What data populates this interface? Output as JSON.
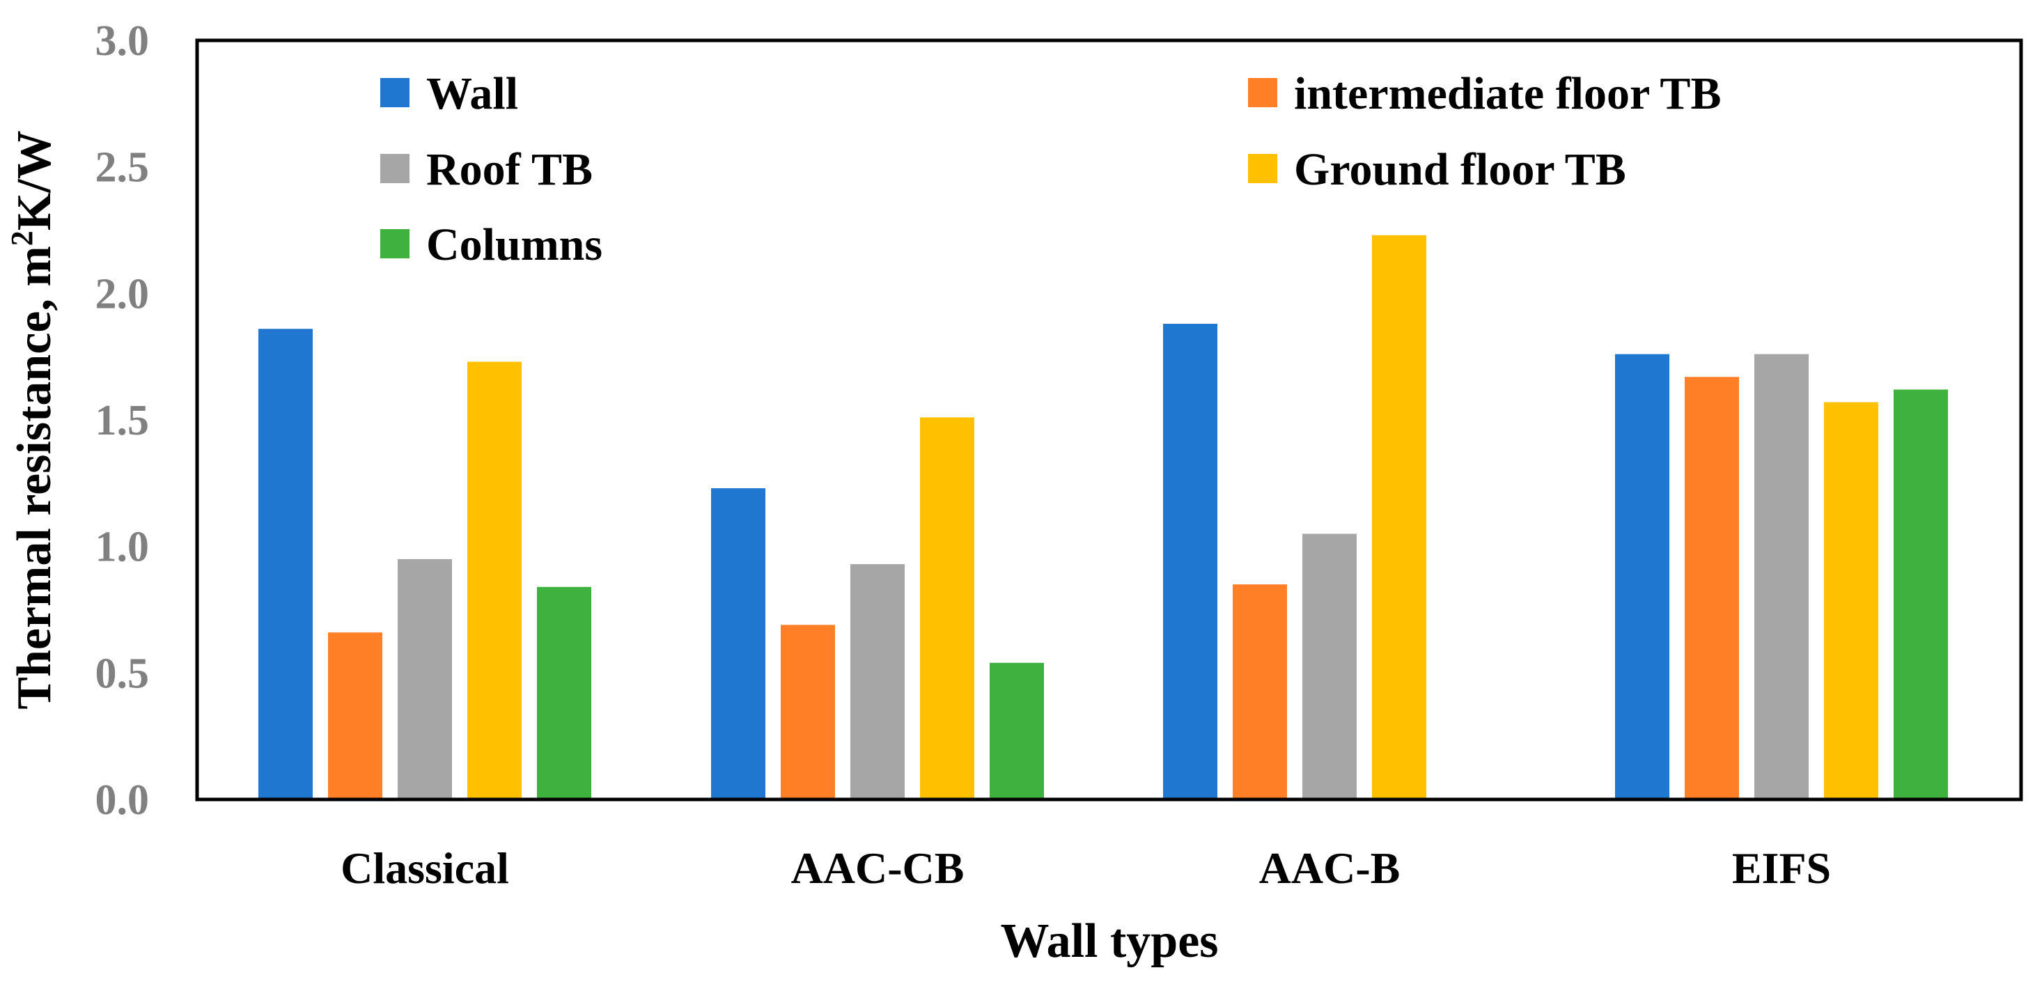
{
  "chart_data": {
    "type": "bar",
    "title": "",
    "xlabel": "Wall types",
    "ylabel": "Thermal resistance, m²K/W",
    "ylabel_parts": {
      "main": "Thermal resistance, m",
      "superscript": "2",
      "unit_tail": "K/W"
    },
    "ylim": [
      0,
      3.0
    ],
    "yticks": [
      "0.0",
      "0.5",
      "1.0",
      "1.5",
      "2.0",
      "2.5",
      "3.0"
    ],
    "ytick_values": [
      0,
      0.5,
      1.0,
      1.5,
      2.0,
      2.5,
      3.0
    ],
    "grid": false,
    "legend_position": "top, inside plot",
    "categories": [
      "Classical",
      "AAC-CB",
      "AAC-B",
      "EIFS"
    ],
    "series": [
      {
        "name": "Wall",
        "color": "#1F77D0",
        "values": [
          1.86,
          1.23,
          1.88,
          1.76
        ]
      },
      {
        "name": "intermediate floor TB",
        "color": "#FF7F27",
        "values": [
          0.66,
          0.69,
          0.85,
          1.67
        ]
      },
      {
        "name": "Roof TB",
        "color": "#A6A6A6",
        "values": [
          0.95,
          0.93,
          1.05,
          1.76
        ]
      },
      {
        "name": "Ground floor TB",
        "color": "#FFC000",
        "values": [
          1.73,
          1.51,
          2.23,
          1.57
        ]
      },
      {
        "name": "Columns",
        "color": "#3FB13F",
        "values": [
          0.84,
          0.54,
          null,
          1.62
        ]
      }
    ]
  }
}
